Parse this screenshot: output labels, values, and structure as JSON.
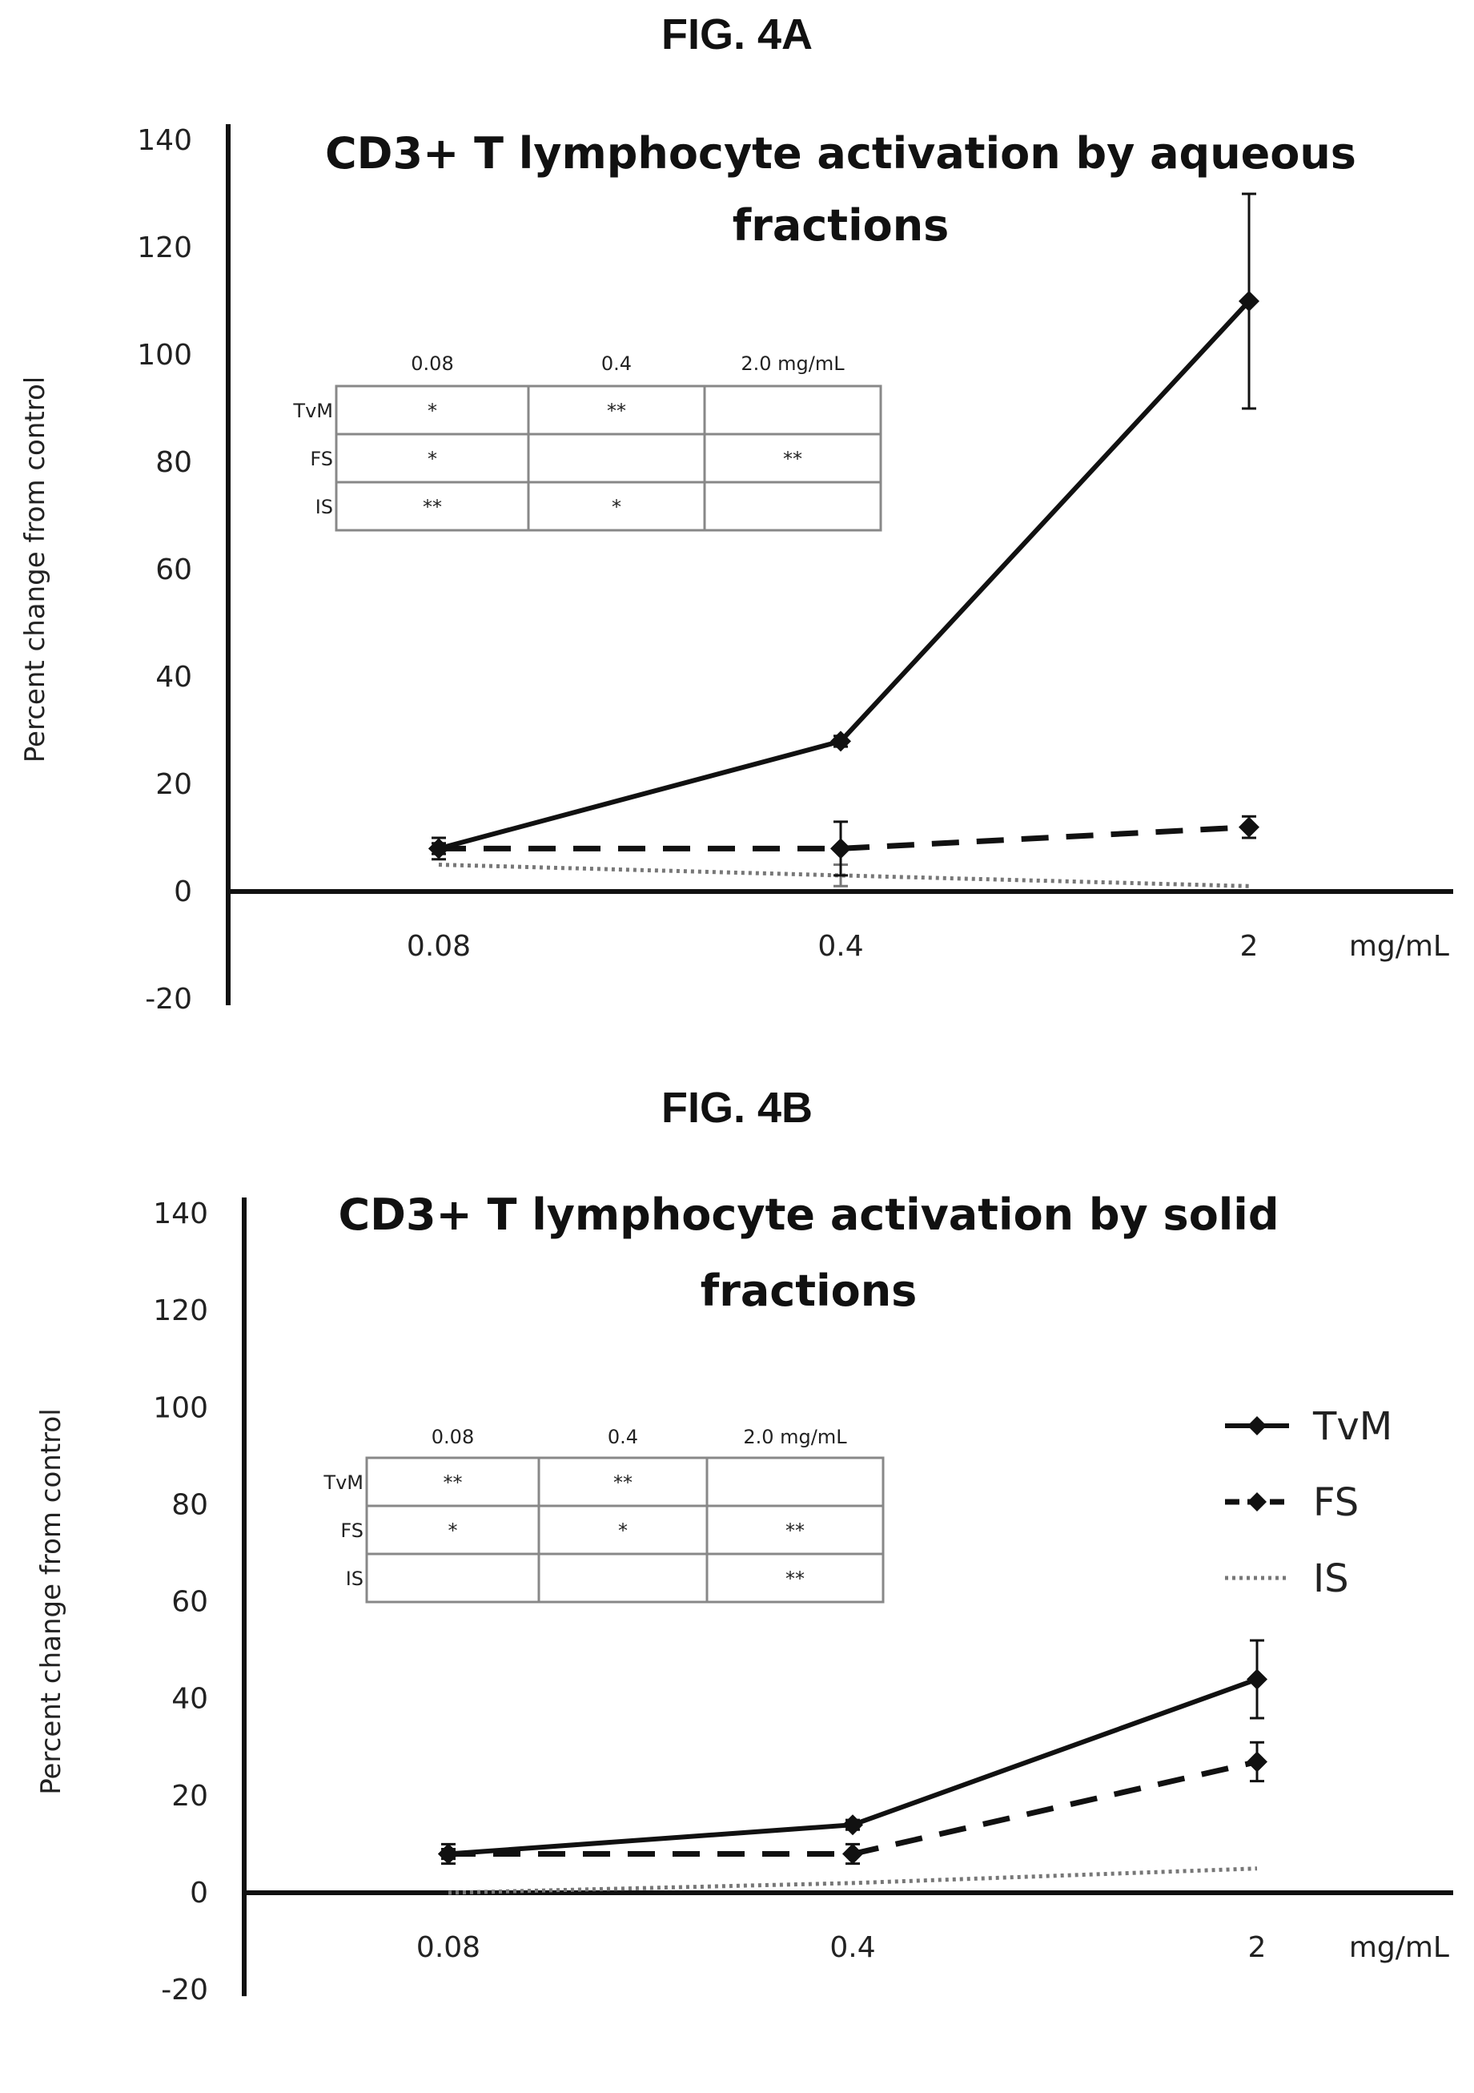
{
  "figures": [
    {
      "label": "FIG. 4A"
    },
    {
      "label": "FIG. 4B"
    }
  ],
  "chart_data": [
    {
      "type": "line",
      "title": "CD3+ T lymphocyte activation by aqueous fractions",
      "title_lines": [
        "CD3+ T lymphocyte activation by aqueous",
        "fractions"
      ],
      "xlabel": "mg/mL",
      "ylabel": "Percent change from control",
      "categories": [
        "0.08",
        "0.4",
        "2"
      ],
      "ylim": [
        -20,
        140
      ],
      "yticks": [
        -20,
        0,
        20,
        40,
        60,
        80,
        100,
        120,
        140
      ],
      "grid": false,
      "legend": null,
      "series": [
        {
          "name": "TvM",
          "style": "solid",
          "values": [
            8,
            28,
            110
          ],
          "errors": [
            2,
            1,
            20
          ]
        },
        {
          "name": "FS",
          "style": "dashed",
          "values": [
            8,
            8,
            12
          ],
          "errors": [
            1,
            5,
            2
          ]
        },
        {
          "name": "IS",
          "style": "dotted",
          "values": [
            5,
            3,
            1
          ],
          "errors": [
            0,
            2,
            0
          ]
        }
      ],
      "significance_table": {
        "columns": [
          "0.08",
          "0.4",
          "2.0 mg/mL"
        ],
        "rows": [
          {
            "label": "TvM",
            "cells": [
              "*",
              "**",
              ""
            ]
          },
          {
            "label": "FS",
            "cells": [
              "*",
              "",
              "**"
            ]
          },
          {
            "label": "IS",
            "cells": [
              "**",
              "*",
              ""
            ]
          }
        ]
      }
    },
    {
      "type": "line",
      "title": "CD3+ T lymphocyte activation by solid fractions",
      "title_lines": [
        "CD3+ T lymphocyte activation by solid",
        "fractions"
      ],
      "xlabel": "mg/mL",
      "ylabel": "Percent change from control",
      "categories": [
        "0.08",
        "0.4",
        "2"
      ],
      "ylim": [
        -20,
        140
      ],
      "yticks": [
        -20,
        0,
        20,
        40,
        60,
        80,
        100,
        120,
        140
      ],
      "grid": false,
      "legend": "right",
      "series": [
        {
          "name": "TvM",
          "style": "solid",
          "values": [
            8,
            14,
            44
          ],
          "errors": [
            2,
            1,
            8
          ]
        },
        {
          "name": "FS",
          "style": "dashed",
          "values": [
            8,
            8,
            27
          ],
          "errors": [
            1,
            2,
            4
          ]
        },
        {
          "name": "IS",
          "style": "dotted",
          "values": [
            0,
            2,
            5
          ],
          "errors": [
            0,
            0,
            0
          ]
        }
      ],
      "significance_table": {
        "columns": [
          "0.08",
          "0.4",
          "2.0 mg/mL"
        ],
        "rows": [
          {
            "label": "TvM",
            "cells": [
              "**",
              "**",
              ""
            ]
          },
          {
            "label": "FS",
            "cells": [
              "*",
              "*",
              "**"
            ]
          },
          {
            "label": "IS",
            "cells": [
              "",
              "",
              "**"
            ]
          }
        ]
      }
    }
  ]
}
